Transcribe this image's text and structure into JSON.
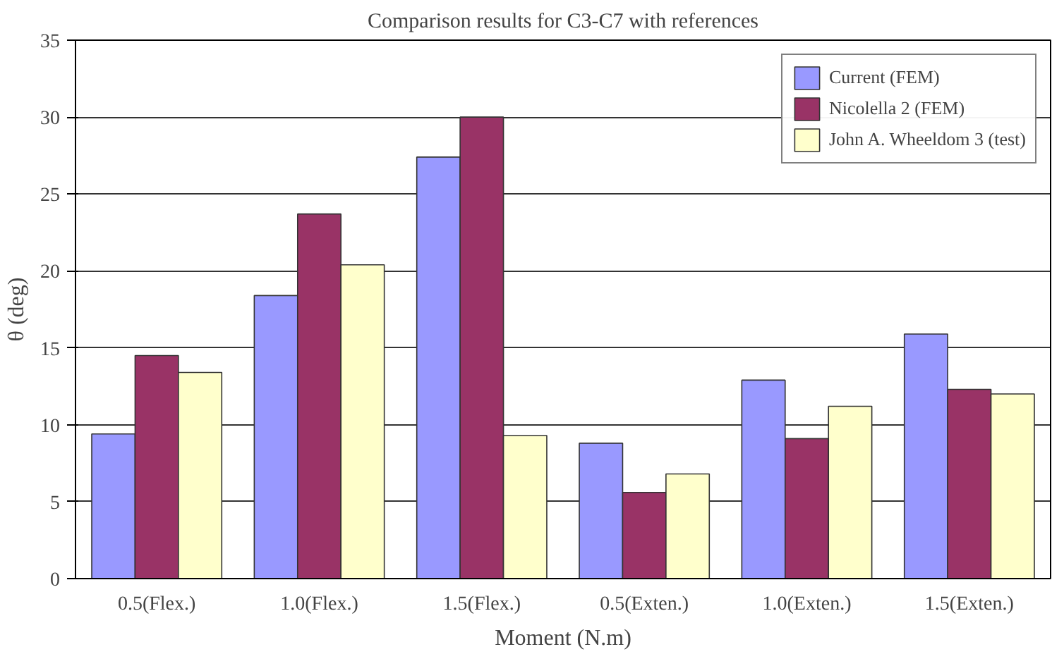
{
  "chart_data": {
    "type": "bar",
    "title": "Comparison results for C3-C7 with references",
    "xlabel": "Moment (N.m)",
    "ylabel": "θ (deg)",
    "categories": [
      "0.5(Flex.)",
      "1.0(Flex.)",
      "1.5(Flex.)",
      "0.5(Exten.)",
      "1.0(Exten.)",
      "1.5(Exten.)"
    ],
    "series": [
      {
        "name": "Current (FEM)",
        "color": "#9999ff",
        "values": [
          9.4,
          18.4,
          27.4,
          8.8,
          12.9,
          15.9
        ]
      },
      {
        "name": "Nicolella 2 (FEM)",
        "color": "#993366",
        "values": [
          14.5,
          23.7,
          30.0,
          5.6,
          9.1,
          12.3
        ]
      },
      {
        "name": "John A. Wheeldom 3 (test)",
        "color": "#ffffcc",
        "values": [
          13.4,
          20.4,
          9.3,
          6.8,
          11.2,
          12.0
        ]
      }
    ],
    "ylim": [
      0,
      35
    ],
    "yticks": [
      0,
      5,
      10,
      15,
      20,
      25,
      30,
      35
    ],
    "grid": "y",
    "legend": "top right"
  }
}
